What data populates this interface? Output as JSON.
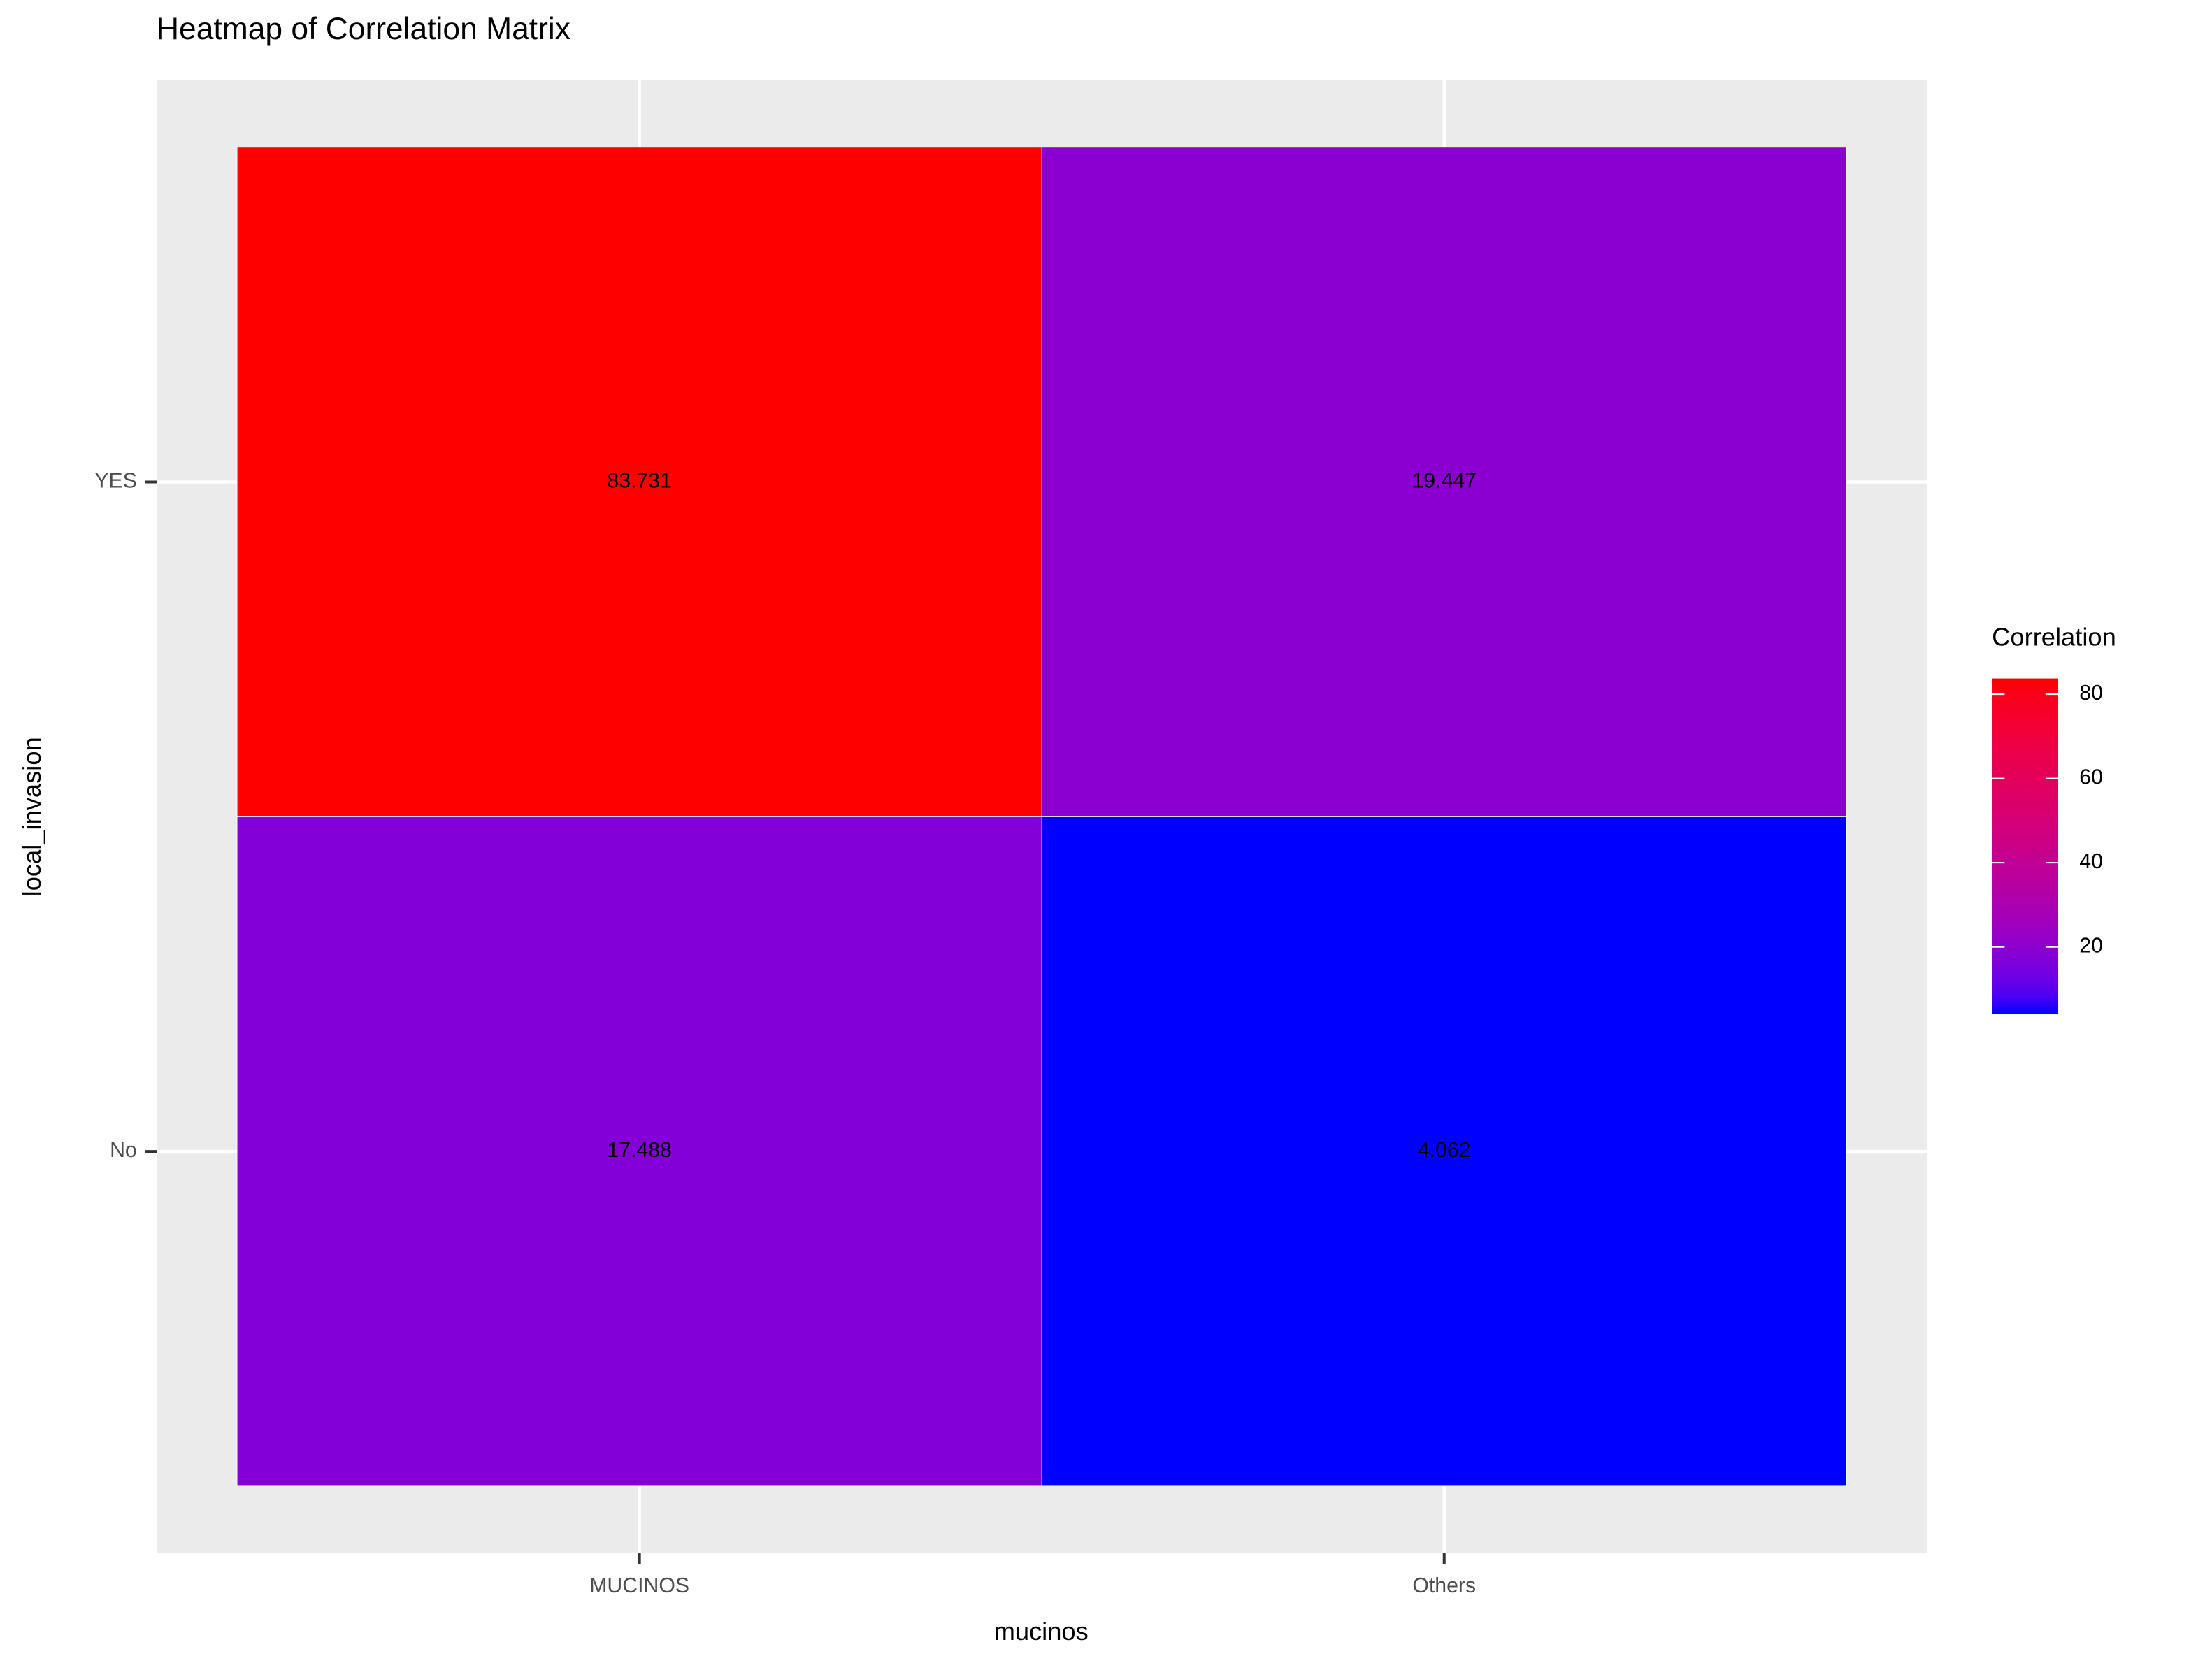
{
  "chart_data": {
    "type": "heatmap",
    "title": "Heatmap of Correlation Matrix",
    "x_label": "mucinos",
    "y_label": "local_invasion",
    "x_categories": [
      "MUCINOS",
      "Others"
    ],
    "y_categories": [
      "No",
      "YES"
    ],
    "values": [
      [
        17.488,
        4.062
      ],
      [
        83.731,
        19.447
      ]
    ],
    "legend_title": "Correlation",
    "low_color": "#0000ff",
    "high_color": "#ff0000",
    "colorbar_ticks": [
      20,
      40,
      60,
      80
    ],
    "grid": true
  }
}
